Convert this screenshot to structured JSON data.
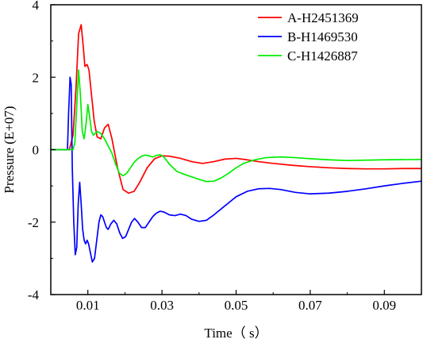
{
  "chart_data": {
    "type": "line",
    "title": "",
    "xlabel": "Time（ s）",
    "ylabel": "Pressure (E+07)",
    "xlim": [
      0,
      0.1
    ],
    "ylim": [
      -4,
      4
    ],
    "xticks": [
      0.01,
      0.03,
      0.05,
      0.07,
      0.09
    ],
    "xtick_labels": [
      "0.01",
      "0.03",
      "0.05",
      "0.07",
      "0.09"
    ],
    "yticks": [
      -4,
      -2,
      0,
      2,
      4
    ],
    "ytick_labels": [
      "-4",
      "-2",
      "0",
      "2",
      "4"
    ],
    "grid": false,
    "legend_position": "top-right",
    "series": [
      {
        "name": "A-H2451369",
        "color": "#ff0000",
        "x": [
          0,
          0.005,
          0.006,
          0.0068,
          0.0075,
          0.0082,
          0.0088,
          0.0092,
          0.0098,
          0.0103,
          0.011,
          0.0117,
          0.0125,
          0.0135,
          0.0145,
          0.0155,
          0.0165,
          0.018,
          0.0195,
          0.021,
          0.0225,
          0.024,
          0.026,
          0.028,
          0.03,
          0.032,
          0.035,
          0.038,
          0.041,
          0.044,
          0.047,
          0.05,
          0.053,
          0.056,
          0.06,
          0.065,
          0.07,
          0.075,
          0.08,
          0.085,
          0.09,
          0.095,
          0.1
        ],
        "y": [
          0,
          0,
          0.4,
          1.7,
          3.2,
          3.45,
          2.8,
          2.3,
          2.35,
          2.2,
          1.5,
          0.8,
          0.35,
          0.3,
          0.6,
          0.7,
          0.3,
          -0.5,
          -1.1,
          -1.2,
          -1.15,
          -0.9,
          -0.5,
          -0.25,
          -0.17,
          -0.18,
          -0.24,
          -0.33,
          -0.38,
          -0.33,
          -0.26,
          -0.24,
          -0.28,
          -0.33,
          -0.38,
          -0.43,
          -0.47,
          -0.5,
          -0.52,
          -0.53,
          -0.53,
          -0.52,
          -0.52
        ]
      },
      {
        "name": "B-H1469530",
        "color": "#0000ff",
        "x": [
          0,
          0.0045,
          0.0048,
          0.0052,
          0.0055,
          0.0058,
          0.0062,
          0.0066,
          0.007,
          0.0074,
          0.0078,
          0.0082,
          0.0086,
          0.009,
          0.0094,
          0.0098,
          0.0102,
          0.0107,
          0.0112,
          0.0118,
          0.0124,
          0.013,
          0.0135,
          0.014,
          0.0145,
          0.015,
          0.0155,
          0.0162,
          0.017,
          0.0178,
          0.0186,
          0.0194,
          0.0202,
          0.021,
          0.0218,
          0.0226,
          0.0235,
          0.0245,
          0.0255,
          0.0265,
          0.0275,
          0.0285,
          0.0295,
          0.0305,
          0.032,
          0.0335,
          0.035,
          0.0365,
          0.038,
          0.04,
          0.042,
          0.044,
          0.047,
          0.05,
          0.053,
          0.056,
          0.059,
          0.062,
          0.066,
          0.07,
          0.075,
          0.08,
          0.085,
          0.09,
          0.095,
          0.1
        ],
        "y": [
          0,
          0,
          1.0,
          2.0,
          1.8,
          -0.5,
          -2.0,
          -2.9,
          -2.7,
          -1.5,
          -0.9,
          -1.5,
          -2.2,
          -2.5,
          -2.6,
          -2.5,
          -2.6,
          -2.85,
          -3.1,
          -3.0,
          -2.5,
          -2.0,
          -1.8,
          -1.85,
          -2.0,
          -2.15,
          -2.2,
          -2.05,
          -1.95,
          -2.05,
          -2.3,
          -2.45,
          -2.4,
          -2.2,
          -2.0,
          -1.9,
          -2.0,
          -2.15,
          -2.15,
          -2.0,
          -1.85,
          -1.75,
          -1.7,
          -1.72,
          -1.8,
          -1.82,
          -1.78,
          -1.82,
          -1.92,
          -1.98,
          -1.95,
          -1.8,
          -1.55,
          -1.3,
          -1.15,
          -1.08,
          -1.07,
          -1.1,
          -1.18,
          -1.22,
          -1.2,
          -1.15,
          -1.08,
          -1.0,
          -0.93,
          -0.87
        ]
      },
      {
        "name": "C-H1426887",
        "color": "#00ee00",
        "x": [
          0,
          0.006,
          0.0065,
          0.007,
          0.0075,
          0.008,
          0.0085,
          0.009,
          0.0095,
          0.01,
          0.0105,
          0.011,
          0.0115,
          0.0125,
          0.0135,
          0.0145,
          0.0155,
          0.0165,
          0.0175,
          0.0185,
          0.0195,
          0.0205,
          0.0215,
          0.0225,
          0.0235,
          0.0245,
          0.0255,
          0.0265,
          0.0275,
          0.0285,
          0.0295,
          0.0305,
          0.032,
          0.034,
          0.036,
          0.038,
          0.04,
          0.042,
          0.044,
          0.046,
          0.048,
          0.05,
          0.052,
          0.055,
          0.058,
          0.062,
          0.066,
          0.07,
          0.075,
          0.08,
          0.09,
          0.1
        ],
        "y": [
          0,
          0,
          0.2,
          1.2,
          2.2,
          1.5,
          0.5,
          0.3,
          0.7,
          1.25,
          0.9,
          0.5,
          0.4,
          0.5,
          0.45,
          0.3,
          0.1,
          -0.1,
          -0.4,
          -0.65,
          -0.72,
          -0.65,
          -0.5,
          -0.35,
          -0.25,
          -0.18,
          -0.15,
          -0.17,
          -0.2,
          -0.16,
          -0.14,
          -0.2,
          -0.4,
          -0.6,
          -0.68,
          -0.75,
          -0.82,
          -0.88,
          -0.87,
          -0.78,
          -0.65,
          -0.5,
          -0.38,
          -0.28,
          -0.22,
          -0.2,
          -0.22,
          -0.25,
          -0.28,
          -0.3,
          -0.28,
          -0.27
        ]
      }
    ]
  }
}
